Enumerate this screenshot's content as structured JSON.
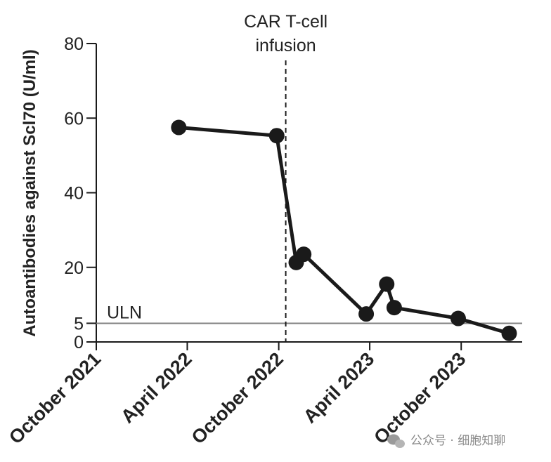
{
  "chart_data": {
    "type": "line",
    "ylabel": "Autoantibodies against Scl70 (U/ml)",
    "xlabel": "",
    "y_ticks": [
      0,
      5,
      20,
      40,
      60,
      80
    ],
    "ylim": [
      0,
      80
    ],
    "x_ticks": [
      "October 2021",
      "April 2022",
      "October 2022",
      "April 2023",
      "October 2023"
    ],
    "x_tick_values": [
      "2021-10-01",
      "2022-04-01",
      "2022-10-01",
      "2023-04-01",
      "2023-10-01"
    ],
    "xlim": [
      "2021-10-01",
      "2024-01-31"
    ],
    "x": [
      "2022-03-15",
      "2022-09-27",
      "2022-11-05",
      "2022-11-20",
      "2023-03-25",
      "2023-05-05",
      "2023-05-20",
      "2023-09-25",
      "2024-01-05"
    ],
    "values": [
      57.5,
      55.3,
      21.3,
      23.5,
      7.5,
      15.5,
      9.2,
      6.3,
      2.3
    ],
    "reference_line": {
      "label": "ULN",
      "value": 5
    },
    "event_line": {
      "label_line1": "CAR T-cell",
      "label_line2": "infusion",
      "date": "2022-10-15"
    },
    "grid": false,
    "legend": "none",
    "colors": {
      "line": "#1a1a1a",
      "marker": "#1a1a1a",
      "uln": "#808080",
      "axis": "#1a1a1a"
    }
  },
  "watermark": {
    "text": "公众号 · 细胞知聊"
  }
}
